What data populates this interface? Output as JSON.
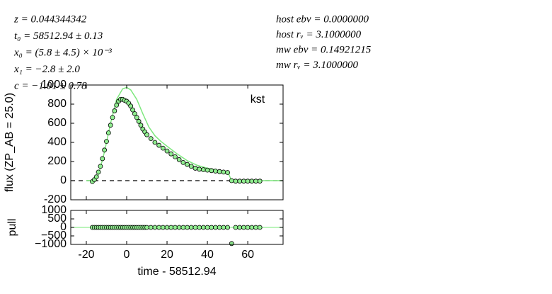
{
  "chart_data": [
    {
      "type": "scatter",
      "fit_params": [
        "z = 0.044344342",
        "t₀ = 58512.94 ± 0.13",
        "x₀ = (5.8 ± 4.5) × 10⁻³",
        "x₁ = −2.8 ± 2.0",
        "c = −1.01 ± 0.78"
      ],
      "dust_params": [
        "host ebv = 0.0000000",
        "host rᵥ = 3.1000000",
        "mw ebv = 0.14921215",
        "mw rᵥ = 3.1000000"
      ],
      "band": "kst",
      "ylabel": "flux (ZP_AB = 25.0)",
      "xlim": [
        -27.7,
        77.5
      ],
      "ylim": [
        -200,
        1000
      ],
      "xticks": [
        -20,
        0,
        20,
        40,
        60
      ],
      "yticks": [
        -200,
        0,
        200,
        400,
        600,
        800,
        1000
      ],
      "series": [
        {
          "type": "scatter",
          "color": "#90ee90",
          "x": [
            -17,
            -16,
            -15,
            -14,
            -13,
            -12,
            -11,
            -10,
            -9,
            -8,
            -7,
            -6,
            -5,
            -4,
            -3,
            -2,
            -1,
            0,
            1,
            2,
            3,
            4,
            5,
            6,
            7,
            8,
            9,
            10,
            12,
            14,
            16,
            18,
            20,
            22,
            24,
            26,
            28,
            30,
            32,
            34,
            36,
            38,
            40,
            42,
            44,
            46,
            48,
            50,
            52,
            54,
            56,
            58,
            60,
            62,
            64,
            66
          ],
          "values": [
            -10,
            10,
            40,
            90,
            150,
            230,
            320,
            410,
            500,
            580,
            660,
            730,
            790,
            830,
            850,
            850,
            840,
            830,
            810,
            780,
            740,
            700,
            660,
            620,
            580,
            540,
            510,
            480,
            440,
            400,
            370,
            340,
            310,
            280,
            250,
            220,
            190,
            170,
            150,
            130,
            120,
            115,
            110,
            105,
            100,
            95,
            90,
            85,
            0,
            -5,
            -5,
            -5,
            -5,
            -5,
            -5,
            -5
          ]
        },
        {
          "type": "line",
          "color": "#7ee87e",
          "x": [
            -20,
            -17,
            -14,
            -11,
            -8,
            -5,
            -2,
            0,
            2,
            5,
            8,
            11,
            14,
            17,
            20,
            25,
            30,
            35,
            40,
            45,
            50,
            52,
            60,
            77
          ],
          "values": [
            0,
            0,
            60,
            300,
            600,
            850,
            960,
            975,
            950,
            850,
            700,
            560,
            470,
            410,
            360,
            280,
            210,
            160,
            130,
            110,
            95,
            0,
            0,
            0
          ]
        }
      ]
    },
    {
      "type": "scatter",
      "xlabel": "time - 58512.94",
      "ylabel": "pull",
      "xlim": [
        -27.7,
        77.5
      ],
      "ylim": [
        -1000,
        1000
      ],
      "xticks": [
        -20,
        0,
        20,
        40,
        60
      ],
      "yticks": [
        {
          "value": -1000,
          "label": "−1000"
        },
        {
          "value": -500,
          "label": "−500"
        },
        0,
        500,
        1000
      ],
      "series": [
        {
          "type": "scatter",
          "color": "#90ee90",
          "x": [
            -17,
            -16,
            -15,
            -14,
            -13,
            -12,
            -11,
            -10,
            -9,
            -8,
            -7,
            -6,
            -5,
            -4,
            -3,
            -2,
            -1,
            0,
            1,
            2,
            3,
            4,
            5,
            6,
            7,
            8,
            9,
            10,
            12,
            14,
            16,
            18,
            20,
            22,
            24,
            26,
            28,
            30,
            32,
            34,
            36,
            38,
            40,
            42,
            44,
            46,
            48,
            50,
            52,
            54,
            56,
            58,
            60,
            62,
            64,
            66
          ],
          "values": [
            0,
            0,
            0,
            0,
            0,
            0,
            0,
            0,
            0,
            0,
            0,
            0,
            0,
            0,
            0,
            0,
            0,
            0,
            0,
            0,
            0,
            0,
            0,
            0,
            0,
            0,
            0,
            0,
            0,
            0,
            0,
            0,
            0,
            0,
            0,
            0,
            0,
            0,
            0,
            0,
            0,
            0,
            0,
            0,
            0,
            0,
            0,
            0,
            -950,
            0,
            0,
            0,
            0,
            0,
            0,
            0
          ]
        }
      ]
    }
  ]
}
